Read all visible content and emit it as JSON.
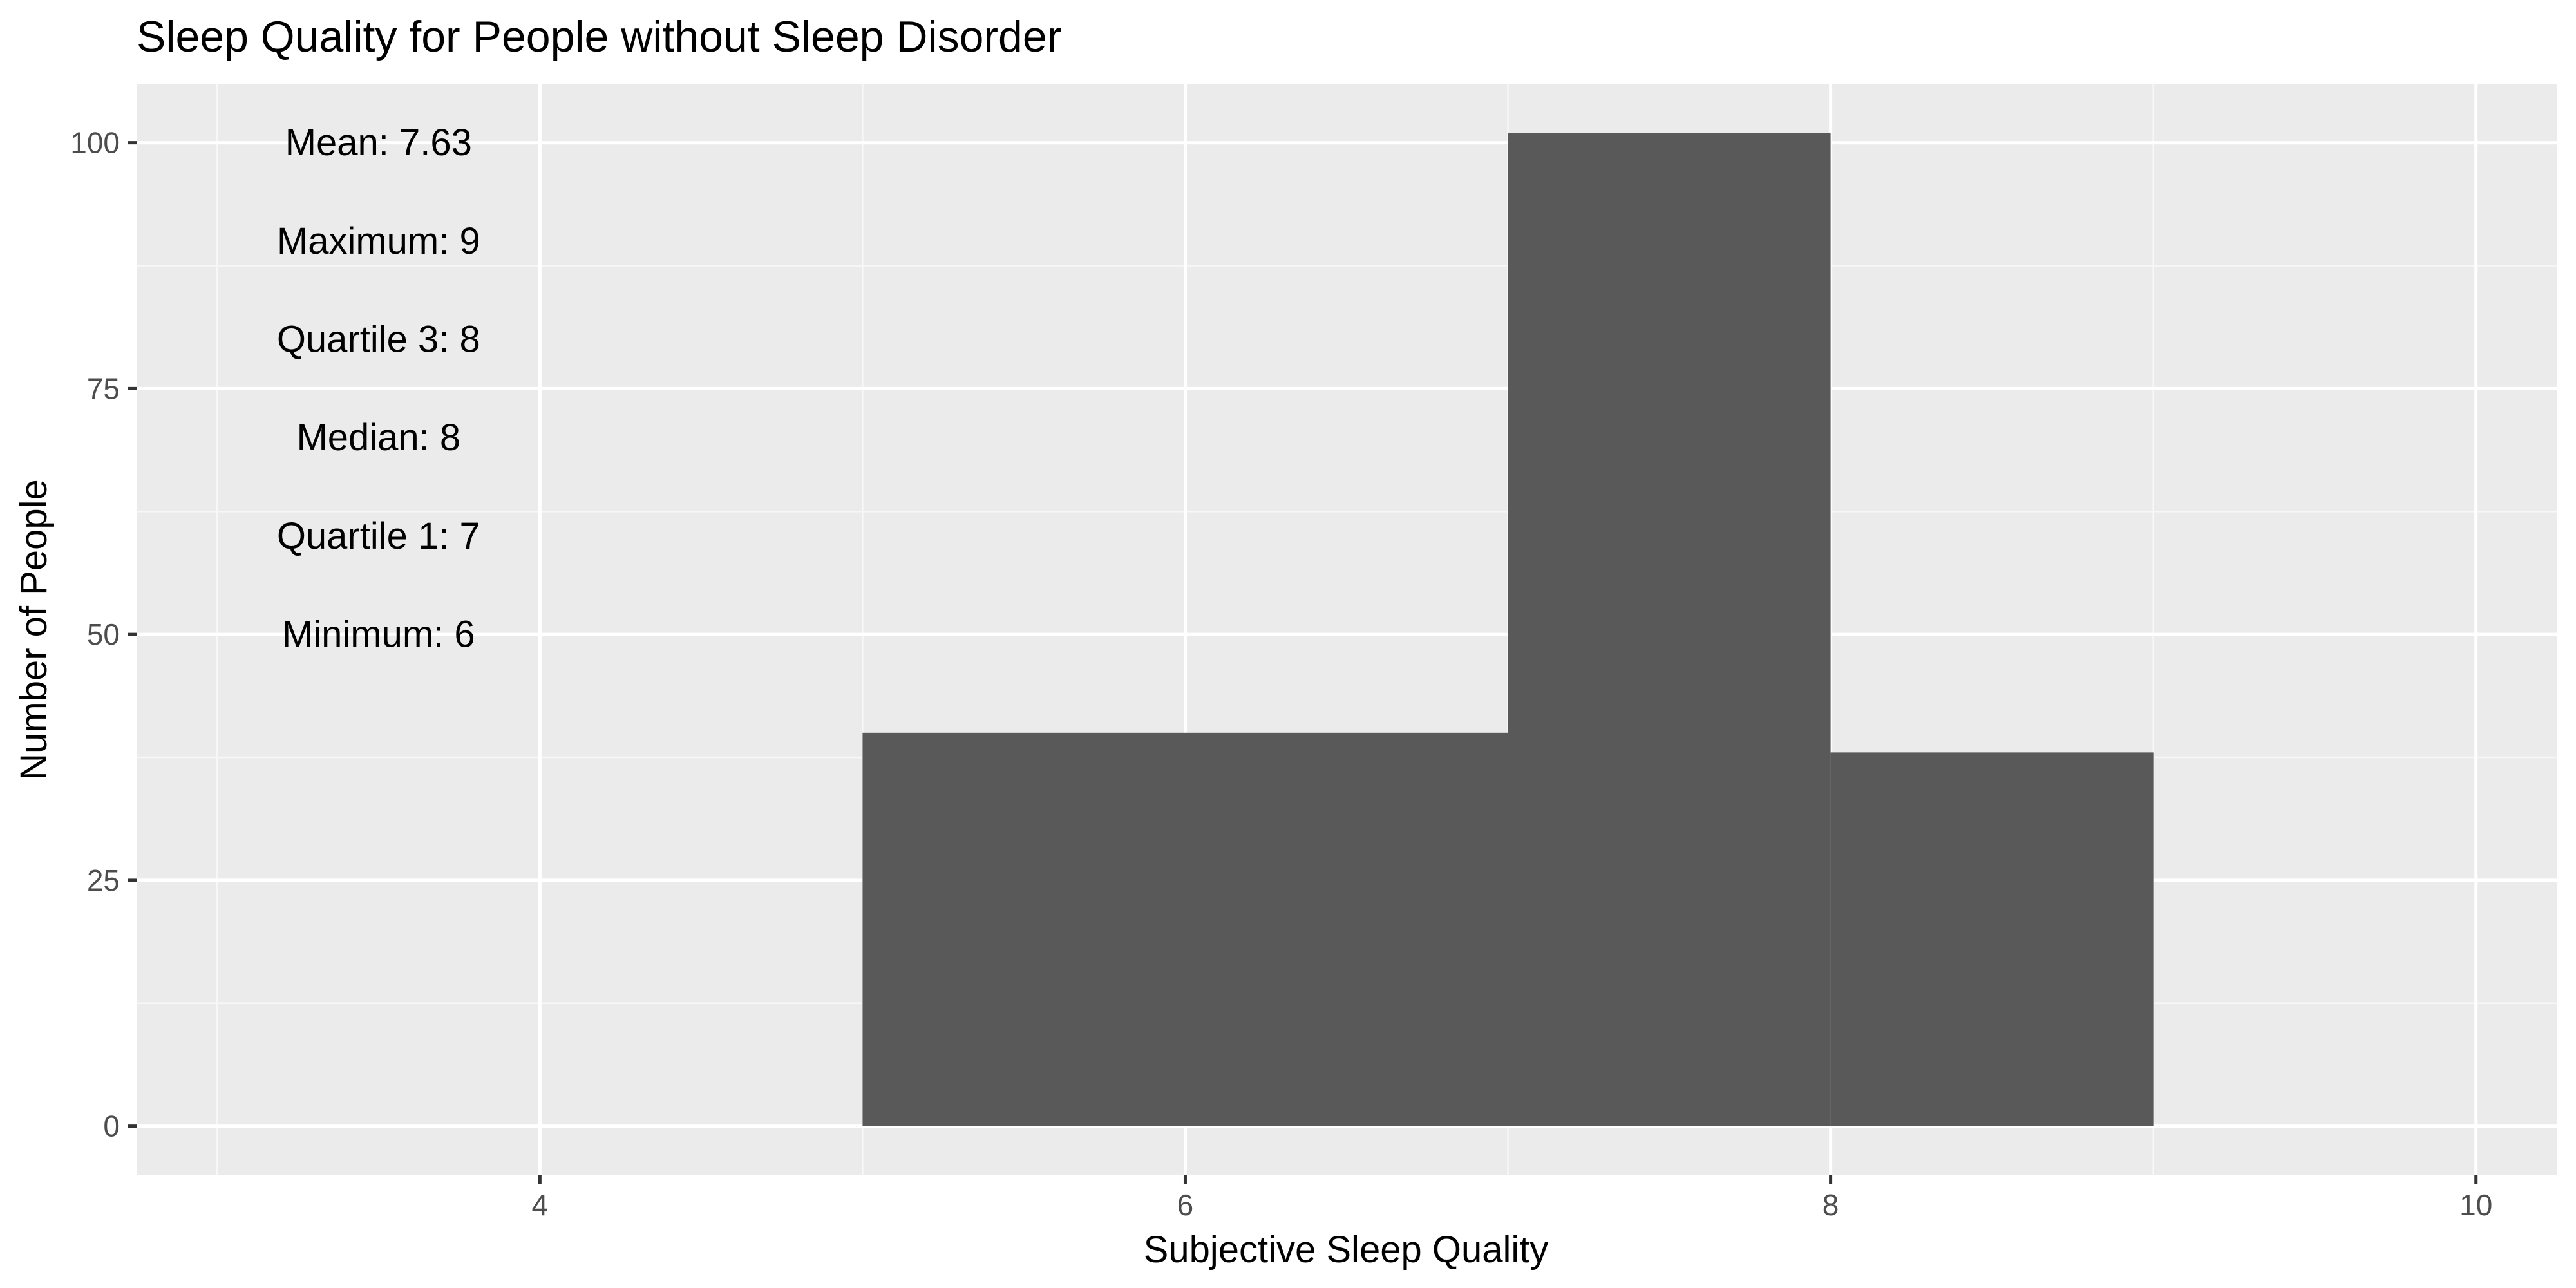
{
  "chart_data": {
    "type": "bar",
    "title": "Sleep Quality for People without Sleep Disorder",
    "xlabel": "Subjective Sleep Quality",
    "ylabel": "Number of People",
    "xlim": [
      2.75,
      10.25
    ],
    "ylim": [
      -5,
      106
    ],
    "x_ticks": [
      4,
      6,
      8,
      10
    ],
    "y_ticks": [
      0,
      25,
      50,
      75,
      100
    ],
    "grid": true,
    "bar_color": "#595959",
    "panel_background": "#ebebeb",
    "bins": [
      {
        "x0": 5,
        "x1": 7,
        "count": 40
      },
      {
        "x0": 7,
        "x1": 8,
        "count": 101
      },
      {
        "x0": 8,
        "x1": 9,
        "count": 38
      }
    ],
    "annotations": [
      {
        "text": "Mean: 7.63",
        "x": 3.5,
        "y": 100
      },
      {
        "text": "Maximum: 9",
        "x": 3.5,
        "y": 90
      },
      {
        "text": "Quartile 3: 8",
        "x": 3.5,
        "y": 80
      },
      {
        "text": "Median: 8",
        "x": 3.5,
        "y": 70
      },
      {
        "text": "Quartile 1: 7",
        "x": 3.5,
        "y": 60
      },
      {
        "text": "Minimum: 6",
        "x": 3.5,
        "y": 50
      }
    ]
  }
}
